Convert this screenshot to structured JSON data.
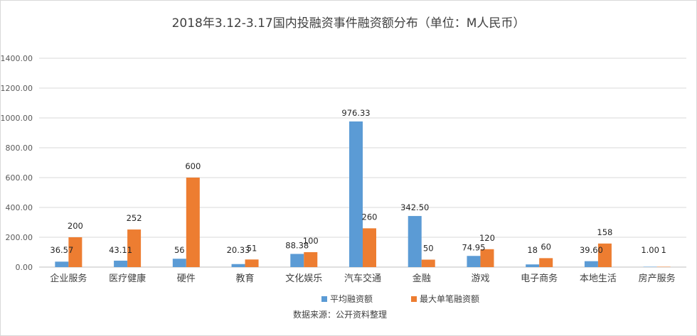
{
  "chart_data": {
    "type": "bar",
    "title": "2018年3.12-3.17国内投融资事件融资额分布（单位：M人民币）",
    "categories": [
      "企业服务",
      "医疗健康",
      "硬件",
      "教育",
      "文化娱乐",
      "汽车交通",
      "金融",
      "游戏",
      "电子商务",
      "本地生活",
      "房产服务"
    ],
    "series": [
      {
        "name": "平均融资额",
        "color": "#5b9bd5",
        "values": [
          36.57,
          43.11,
          56,
          20.33,
          88.38,
          976.33,
          342.5,
          74.95,
          18,
          39.6,
          1.0
        ],
        "labels": [
          "36.57",
          "43.11",
          "56",
          "20.33",
          "88.38",
          "976.33",
          "342.50",
          "74.95",
          "18",
          "39.60",
          "1.00"
        ]
      },
      {
        "name": "最大单笔融资额",
        "color": "#ed7d31",
        "values": [
          200,
          252,
          600,
          51,
          100,
          260,
          50,
          120,
          60,
          158,
          1
        ],
        "labels": [
          "200",
          "252",
          "600",
          "51",
          "100",
          "260",
          "50",
          "120",
          "60",
          "158",
          "1"
        ]
      }
    ],
    "yticks": [
      "0.00",
      "200.00",
      "400.00",
      "600.00",
      "800.00",
      "1000.00",
      "1200.00",
      "1400.00"
    ],
    "ylim": [
      0,
      1400
    ],
    "grid": true,
    "legend_position": "bottom",
    "source_note": "数据来源：公开资料整理"
  }
}
